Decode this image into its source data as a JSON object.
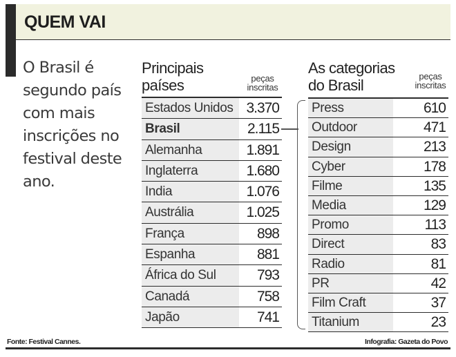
{
  "header": {
    "title": "QUEM VAI"
  },
  "intro": {
    "text": "O Brasil é segundo país com mais inscrições no festival deste ano."
  },
  "countries_table": {
    "title_line1": "Principais",
    "title_line2": "países",
    "unit_line1": "peças",
    "unit_line2": "inscritas",
    "rows": [
      {
        "name": "Estados Unidos",
        "value": "3.370"
      },
      {
        "name": "Brasil",
        "value": "2.115",
        "highlight": true
      },
      {
        "name": "Alemanha",
        "value": "1.891"
      },
      {
        "name": "Inglaterra",
        "value": "1.680"
      },
      {
        "name": "India",
        "value": "1.076"
      },
      {
        "name": "Austrália",
        "value": "1.025"
      },
      {
        "name": "França",
        "value": "898"
      },
      {
        "name": "Espanha",
        "value": "881"
      },
      {
        "name": "África do Sul",
        "value": "793"
      },
      {
        "name": "Canadá",
        "value": "758"
      },
      {
        "name": "Japão",
        "value": "741"
      }
    ]
  },
  "categories_table": {
    "title_line1": "As categorias",
    "title_line2": "do Brasil",
    "unit_line1": "peças",
    "unit_line2": "inscritas",
    "rows": [
      {
        "name": "Press",
        "value": "610"
      },
      {
        "name": "Outdoor",
        "value": "471"
      },
      {
        "name": "Design",
        "value": "213"
      },
      {
        "name": "Cyber",
        "value": "178"
      },
      {
        "name": "Filme",
        "value": "135"
      },
      {
        "name": "Media",
        "value": "129"
      },
      {
        "name": "Promo",
        "value": "113"
      },
      {
        "name": "Direct",
        "value": "83"
      },
      {
        "name": "Radio",
        "value": "81"
      },
      {
        "name": "PR",
        "value": "42"
      },
      {
        "name": "Film Craft",
        "value": "37"
      },
      {
        "name": "Titanium",
        "value": "23"
      }
    ]
  },
  "footer": {
    "source": "Fonte: Festival Cannes.",
    "credit": "Infografia: Gazeta do Povo"
  },
  "colors": {
    "header_band": "#f1f2df",
    "accent_bar": "#2b2b2b",
    "name_cell": "#ececec",
    "rule": "#2b2b2b"
  }
}
